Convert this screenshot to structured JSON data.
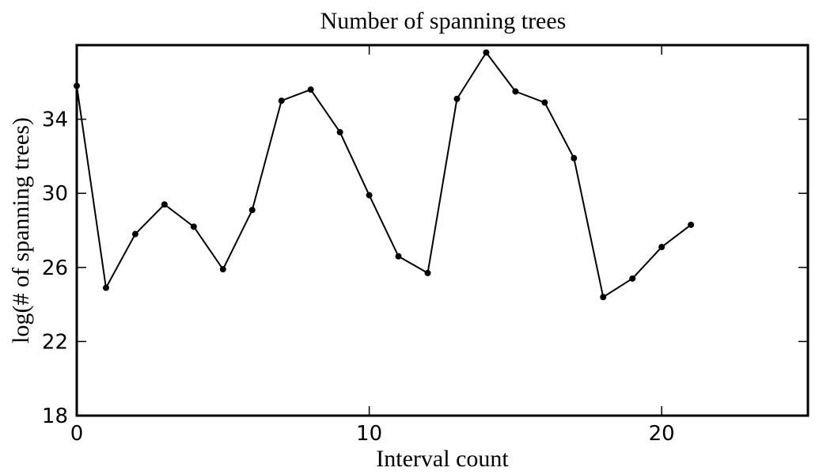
{
  "chart_data": {
    "type": "line",
    "title": "Number of spanning trees",
    "xlabel": "Interval count",
    "ylabel": "log(# of spanning trees)",
    "xlim": [
      0,
      25
    ],
    "ylim": [
      18,
      38
    ],
    "xticks": [
      0,
      10,
      20
    ],
    "yticks": [
      18,
      22,
      26,
      30,
      34
    ],
    "grid": false,
    "series": [
      {
        "color": "#000000",
        "x": [
          0,
          1,
          2,
          3,
          4,
          5,
          6,
          7,
          8,
          9,
          10,
          11,
          12,
          13,
          14,
          15,
          16,
          17,
          18,
          19,
          20,
          21
        ],
        "y": [
          35.8,
          24.9,
          27.8,
          29.4,
          28.2,
          25.9,
          29.1,
          35.0,
          35.6,
          33.3,
          29.9,
          26.6,
          25.7,
          35.1,
          37.6,
          35.5,
          34.9,
          31.9,
          24.4,
          25.4,
          27.1,
          28.3
        ]
      }
    ]
  }
}
